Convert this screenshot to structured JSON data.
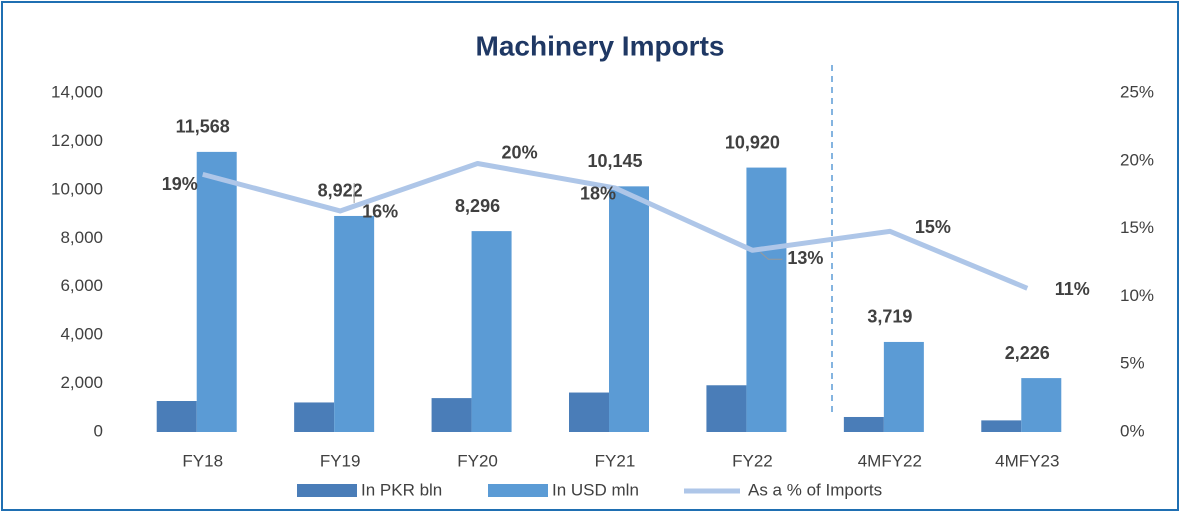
{
  "chart_data": {
    "type": "bar",
    "title": "Machinery Imports",
    "categories": [
      "FY18",
      "FY19",
      "FY20",
      "FY21",
      "FY22",
      "4MFY22",
      "4MFY23"
    ],
    "series": [
      {
        "name": "In PKR bln",
        "color": "#4a7db8",
        "values": [
          1280,
          1220,
          1400,
          1630,
          1930,
          620,
          480
        ]
      },
      {
        "name": "In USD mln",
        "color": "#5b9bd5",
        "values": [
          11568,
          8922,
          8296,
          10145,
          10920,
          3719,
          2226
        ],
        "value_labels": [
          "11,568",
          "8,922",
          "8,296",
          "10,145",
          "10,920",
          "3,719",
          "2,226"
        ]
      },
      {
        "name": "As a % of Imports",
        "color": "#aec6e8",
        "type": "line",
        "axis": "y2",
        "values": [
          19.0,
          16.3,
          19.8,
          18.0,
          13.4,
          14.8,
          10.6
        ],
        "value_labels": [
          "19%",
          "16%",
          "20%",
          "18%",
          "13%",
          "15%",
          "11%"
        ]
      }
    ],
    "ylim": [
      0,
      14000
    ],
    "yticks": [
      0,
      {
        "value": 2000,
        "label": "2,000"
      },
      {
        "value": 4000,
        "label": "4,000"
      },
      {
        "value": 6000,
        "label": "6,000"
      },
      {
        "value": 8000,
        "label": "8,000"
      },
      {
        "value": 10000,
        "label": "10,000"
      },
      {
        "value": 12000,
        "label": "12,000"
      },
      {
        "value": 14000,
        "label": "14,000"
      }
    ],
    "y2lim": [
      0,
      25
    ],
    "y2ticks": [
      {
        "value": 0,
        "label": "0%"
      },
      {
        "value": 5,
        "label": "5%"
      },
      {
        "value": 10,
        "label": "10%"
      },
      {
        "value": 15,
        "label": "15%"
      },
      {
        "value": 20,
        "label": "20%"
      },
      {
        "value": 25,
        "label": "25%"
      }
    ],
    "grid": false,
    "legend": "bottom"
  }
}
